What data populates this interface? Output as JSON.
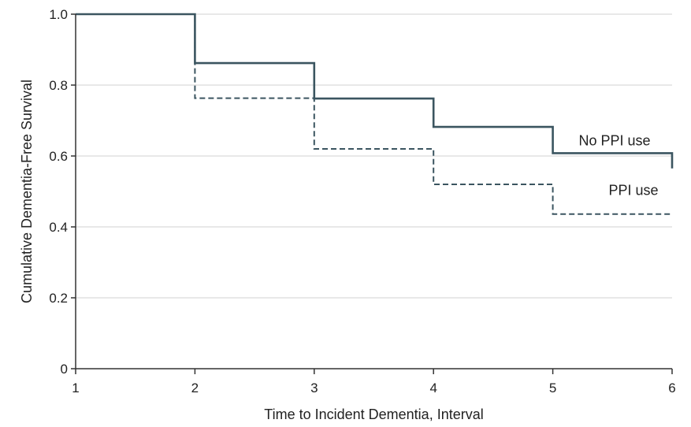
{
  "chart_data": {
    "type": "line",
    "step": "post",
    "xlabel": "Time to Incident Dementia, Interval",
    "ylabel": "Cumulative Dementia-Free Survival",
    "xlim": [
      1,
      6
    ],
    "ylim": [
      0,
      1.0
    ],
    "x_ticks": [
      1,
      2,
      3,
      4,
      5,
      6
    ],
    "y_ticks": [
      0,
      0.2,
      0.4,
      0.6,
      0.8,
      1.0
    ],
    "x_tick_labels": [
      "1",
      "2",
      "3",
      "4",
      "5",
      "6"
    ],
    "y_tick_labels": [
      "0",
      "0.2",
      "0.4",
      "0.6",
      "0.8",
      "1.0"
    ],
    "grid": true,
    "grid_color": "#d9d9d9",
    "series": [
      {
        "name": "No PPI use",
        "style": "solid",
        "color": "#3b5560",
        "x": [
          1,
          2,
          3,
          4,
          5,
          6
        ],
        "y": [
          1.0,
          0.862,
          0.762,
          0.682,
          0.608,
          0.565
        ]
      },
      {
        "name": "PPI use",
        "style": "dashed",
        "color": "#3b5560",
        "x": [
          1,
          2,
          3,
          4,
          5,
          6
        ],
        "y": [
          1.0,
          0.763,
          0.62,
          0.52,
          0.436,
          0.436
        ]
      }
    ]
  }
}
